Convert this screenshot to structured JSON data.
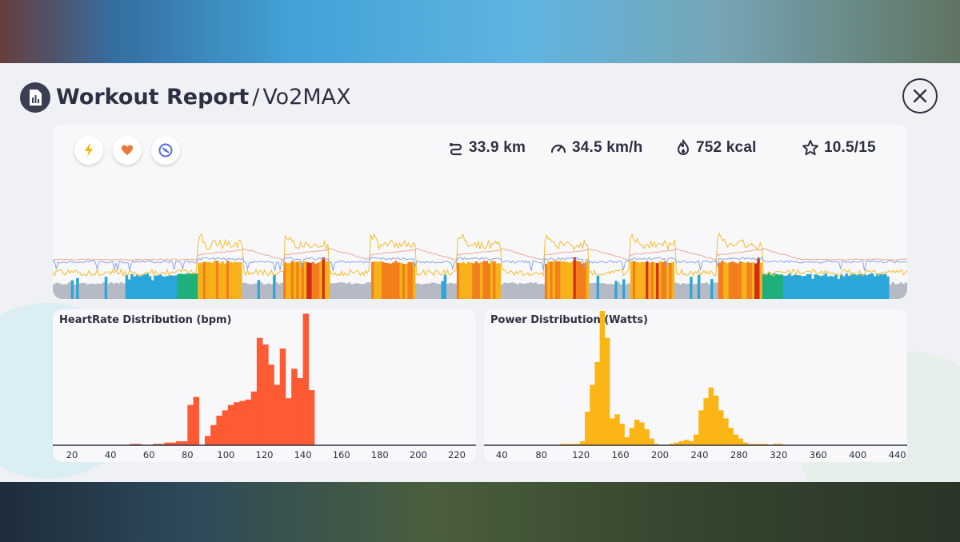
{
  "header": {
    "title": "Workout Report",
    "separator": "/",
    "workout_name": "Vo2MAX",
    "close_label": "✕"
  },
  "toggles": [
    {
      "name": "power-toggle",
      "icon": "lightning-icon",
      "color": "#f5b301"
    },
    {
      "name": "heart-toggle",
      "icon": "heart-icon",
      "color": "#e8793a"
    },
    {
      "name": "cadence-toggle",
      "icon": "cadence-icon",
      "color": "#5b6bd6"
    }
  ],
  "stats": {
    "distance": "33.9 km",
    "speed": "34.5 km/h",
    "calories": "752 kcal",
    "score": "10.5/15"
  },
  "colors": {
    "heart_bar": "#fe5a33",
    "power_bar": "#fbb515",
    "axis": "#2c3042",
    "zone_gray": "#b6bac4",
    "zone_blue": "#2aa6d8",
    "zone_green": "#1fb07a",
    "zone_yellow": "#f7b21a",
    "zone_orange": "#f27f1b",
    "zone_red": "#d42a16",
    "power_line": "#f3c23e",
    "hr_line": "#eab0a0",
    "cadence_line": "#8aa6e6"
  },
  "timeline": {
    "intervals": [
      {
        "start": 0.169,
        "end": 0.222
      },
      {
        "start": 0.271,
        "end": 0.323
      },
      {
        "start": 0.372,
        "end": 0.424
      },
      {
        "start": 0.473,
        "end": 0.525
      },
      {
        "start": 0.575,
        "end": 0.627
      },
      {
        "start": 0.676,
        "end": 0.728
      },
      {
        "start": 0.778,
        "end": 0.83
      }
    ]
  },
  "heart_chart": {
    "title": "HeartRate Distribution (bpm)",
    "x_min": 10,
    "x_max": 230,
    "tick_labels": [
      "20",
      "40",
      "60",
      "80",
      "100",
      "120",
      "140",
      "160",
      "180",
      "200",
      "220"
    ],
    "tick_values": [
      20,
      40,
      60,
      80,
      100,
      120,
      140,
      160,
      180,
      200,
      220
    ],
    "bin_start": 47,
    "bin_width": 3,
    "y_max": 100,
    "values": [
      0,
      1,
      1,
      0,
      0,
      1,
      1,
      2,
      2,
      3,
      3,
      30,
      36,
      0,
      7,
      15,
      22,
      26,
      30,
      32,
      33,
      34,
      40,
      80,
      75,
      60,
      45,
      72,
      35,
      57,
      50,
      98,
      41
    ]
  },
  "power_chart": {
    "title": "Power Distribution (Watts)",
    "x_min": 22,
    "x_max": 450,
    "tick_labels": [
      "40",
      "80",
      "120",
      "160",
      "200",
      "240",
      "280",
      "320",
      "360",
      "400",
      "440"
    ],
    "tick_values": [
      40,
      80,
      120,
      160,
      200,
      240,
      280,
      320,
      360,
      400,
      440
    ],
    "bin_start": 94,
    "bin_width": 5,
    "y_max": 100,
    "values": [
      0,
      1,
      1,
      1,
      1,
      3,
      25,
      45,
      62,
      100,
      80,
      20,
      23,
      16,
      6,
      13,
      19,
      17,
      12,
      5,
      1,
      0,
      0,
      1,
      2,
      3,
      4,
      3,
      8,
      26,
      35,
      43,
      37,
      26,
      20,
      13,
      8,
      5,
      2,
      1,
      1,
      1,
      1,
      0,
      1,
      1
    ]
  }
}
